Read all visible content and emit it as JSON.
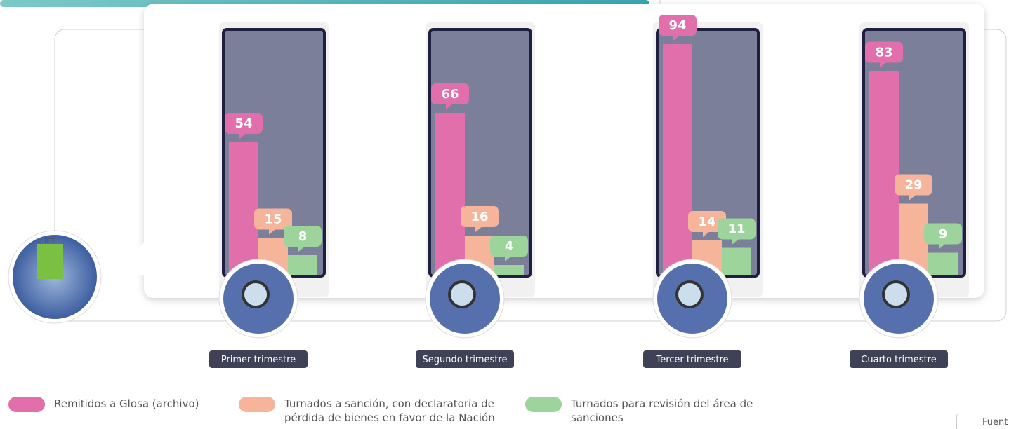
{
  "chart_data": {
    "type": "bar",
    "categories": [
      "Primer trimestre",
      "Segundo trimestre",
      "Tercer trimestre",
      "Cuarto trimestre"
    ],
    "series": [
      {
        "name": "Remitidos a Glosa (archivo)",
        "color": "#e16fac",
        "values": [
          54,
          66,
          94,
          83
        ]
      },
      {
        "name": "Turnados a sanción, con declaratoria de pérdida de bienes en favor de la Nación",
        "color": "#f6b49a",
        "values": [
          15,
          16,
          14,
          29
        ]
      },
      {
        "name": "Turnados para revisión del área de sanciones",
        "color": "#9dd49b",
        "values": [
          8,
          4,
          11,
          9
        ]
      }
    ],
    "source": "Fuent"
  }
}
